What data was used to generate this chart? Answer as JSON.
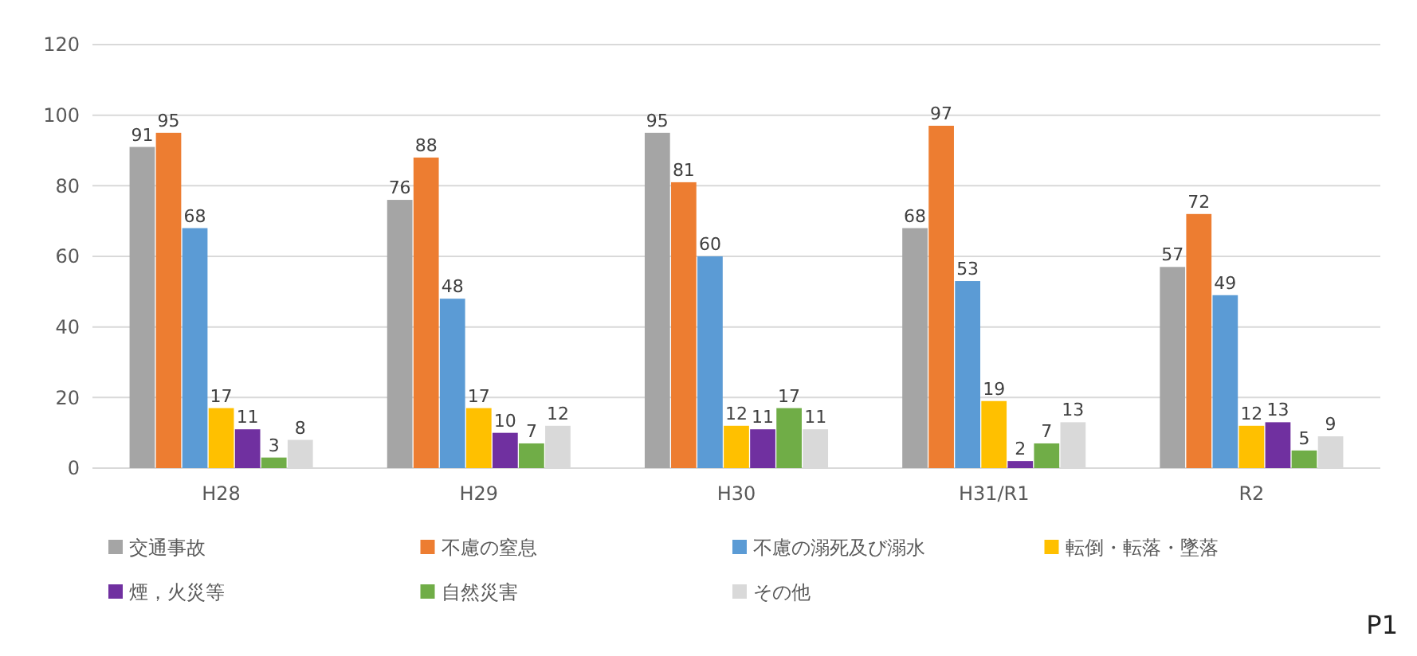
{
  "chart_data": {
    "type": "bar",
    "categories": [
      "H28",
      "H29",
      "H30",
      "H31/R1",
      "R2"
    ],
    "series": [
      {
        "name": "交通事故",
        "color": "#a5a5a5",
        "values": [
          91,
          76,
          95,
          68,
          57
        ]
      },
      {
        "name": "不慮の窒息",
        "color": "#ed7d31",
        "values": [
          95,
          88,
          81,
          97,
          72
        ]
      },
      {
        "name": "不慮の溺死及び溺水",
        "color": "#5b9bd5",
        "values": [
          68,
          48,
          60,
          53,
          49
        ]
      },
      {
        "name": "転倒・転落・墜落",
        "color": "#ffc000",
        "values": [
          17,
          17,
          12,
          19,
          12
        ]
      },
      {
        "name": "煙，火災等",
        "color": "#7030a0",
        "values": [
          11,
          10,
          11,
          2,
          13
        ]
      },
      {
        "name": "自然災害",
        "color": "#70ad47",
        "values": [
          3,
          7,
          17,
          7,
          5
        ]
      },
      {
        "name": "その他",
        "color": "#d9d9d9",
        "values": [
          8,
          12,
          11,
          13,
          9
        ]
      }
    ],
    "ylim": [
      0,
      120
    ],
    "yticks": [
      0,
      20,
      40,
      60,
      80,
      100,
      120
    ],
    "grid": "y",
    "legend": "bottom",
    "data_labels": true,
    "annotations": [
      "P1"
    ]
  }
}
